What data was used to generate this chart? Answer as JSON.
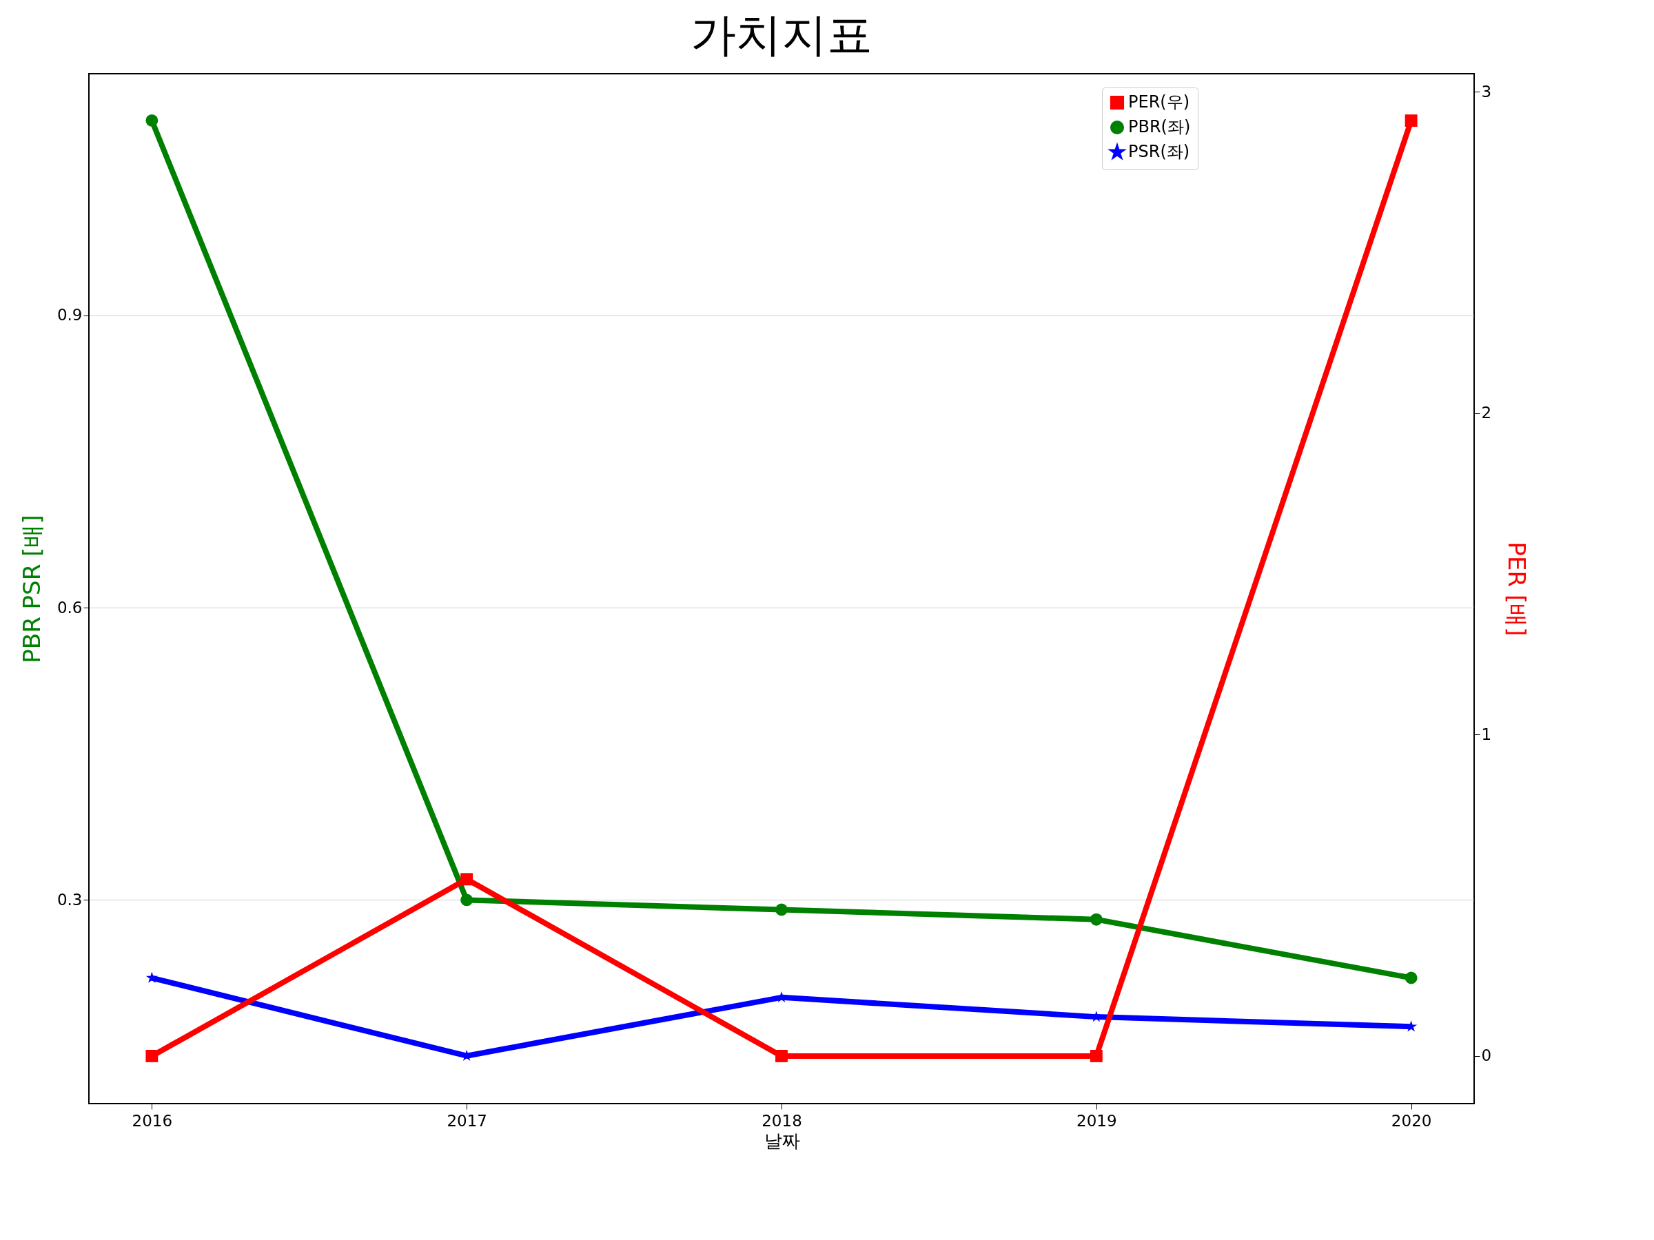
{
  "chart_data": {
    "type": "line",
    "title": "가치지표",
    "xlabel": "날짜",
    "ylabel": "PBR PSR [배]",
    "y2label": "PER [배]",
    "x": [
      2016,
      2017,
      2018,
      2019,
      2020
    ],
    "xlim": [
      2015.8,
      2020.2
    ],
    "xticks": [
      2016,
      2017,
      2018,
      2019,
      2020
    ],
    "ylim": [
      0.091,
      1.148
    ],
    "yticks": [
      0.3,
      0.6,
      0.9
    ],
    "y2lim": [
      -0.148,
      3.056
    ],
    "y2ticks": [
      0,
      1,
      2,
      3
    ],
    "series": [
      {
        "name": "PER(우)",
        "color": "#ff0000",
        "axis": "y2",
        "marker": "square",
        "values": [
          0,
          0.55,
          0,
          0,
          2.91
        ]
      },
      {
        "name": "PBR(좌)",
        "color": "#008000",
        "marker": "circle",
        "values": [
          1.1,
          0.3,
          0.29,
          0.28,
          0.22
        ]
      },
      {
        "name": "PSR(좌)",
        "color": "#0000ff",
        "marker": "star",
        "values": [
          0.22,
          0.14,
          0.2,
          0.18,
          0.17
        ]
      }
    ],
    "grid": "y",
    "legend": "top right",
    "line_style": "solid"
  }
}
